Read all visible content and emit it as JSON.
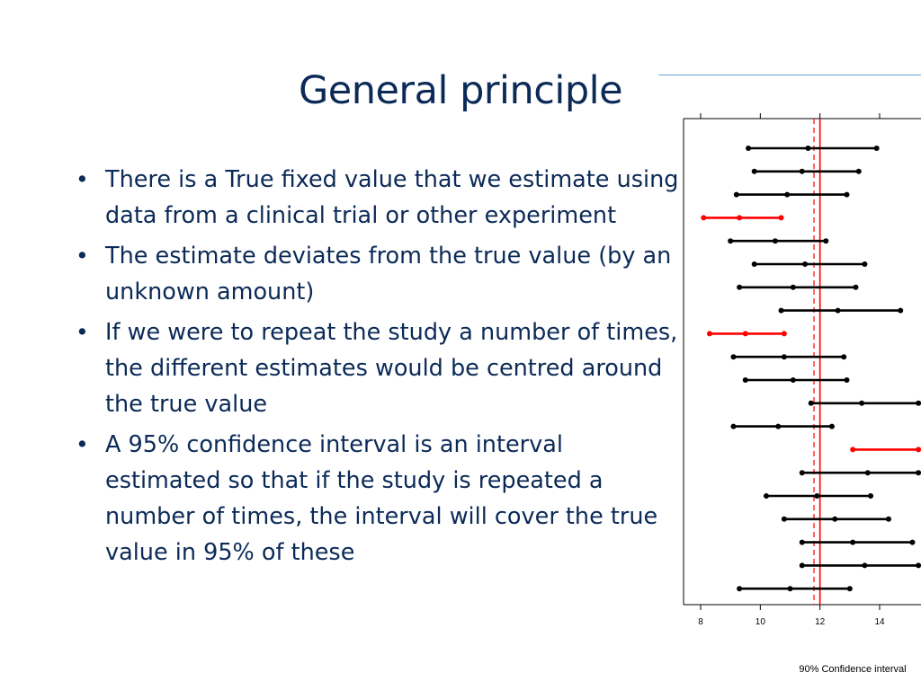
{
  "slide": {
    "title": "General principle",
    "bullets": [
      "There is a True fixed value that we estimate using data from a clinical trial or other experiment",
      "The estimate deviates from the true value (by an unknown amount)",
      "If we were to repeat the study a number of times, the different estimates would be centred around the true value",
      "A 95% confidence interval is an interval estimated so that if the study is repeated a number of times, the interval will cover the true value in 95% of these"
    ]
  },
  "colors": {
    "title": "#0b2a57",
    "text": "#0b2a57",
    "rule": "#6aa6d8",
    "interval_cover": "#000000",
    "interval_miss": "#ff0000",
    "true_line": "#ff0000"
  },
  "chart_data": {
    "type": "scatter",
    "xlabel": "90% Confidence interval",
    "ticks": [
      8,
      10,
      12,
      14
    ],
    "xlim": [
      7.4,
      15.3
    ],
    "true_value": 12,
    "mean_estimate": 11.8,
    "intervals": [
      {
        "lower": 9.6,
        "estimate": 11.6,
        "upper": 13.9,
        "covers": true
      },
      {
        "lower": 9.8,
        "estimate": 11.4,
        "upper": 13.3,
        "covers": true
      },
      {
        "lower": 9.2,
        "estimate": 10.9,
        "upper": 12.9,
        "covers": true
      },
      {
        "lower": 8.1,
        "estimate": 9.3,
        "upper": 10.7,
        "covers": false
      },
      {
        "lower": 9.0,
        "estimate": 10.5,
        "upper": 12.2,
        "covers": true
      },
      {
        "lower": 9.8,
        "estimate": 11.5,
        "upper": 13.5,
        "covers": true
      },
      {
        "lower": 9.3,
        "estimate": 11.1,
        "upper": 13.2,
        "covers": true
      },
      {
        "lower": 10.7,
        "estimate": 12.6,
        "upper": 14.7,
        "covers": true
      },
      {
        "lower": 8.3,
        "estimate": 9.5,
        "upper": 10.8,
        "covers": false
      },
      {
        "lower": 9.1,
        "estimate": 10.8,
        "upper": 12.8,
        "covers": true
      },
      {
        "lower": 9.5,
        "estimate": 11.1,
        "upper": 12.9,
        "covers": true
      },
      {
        "lower": 11.7,
        "estimate": 13.4,
        "upper": 15.3,
        "covers": true
      },
      {
        "lower": 9.1,
        "estimate": 10.6,
        "upper": 12.4,
        "covers": true
      },
      {
        "lower": 13.1,
        "estimate": null,
        "upper": 15.3,
        "covers": false
      },
      {
        "lower": 11.4,
        "estimate": 13.6,
        "upper": 15.3,
        "covers": true
      },
      {
        "lower": 10.2,
        "estimate": 11.9,
        "upper": 13.7,
        "covers": true
      },
      {
        "lower": 10.8,
        "estimate": 12.5,
        "upper": 14.3,
        "covers": true
      },
      {
        "lower": 11.4,
        "estimate": 13.1,
        "upper": 15.1,
        "covers": true
      },
      {
        "lower": 11.4,
        "estimate": 13.5,
        "upper": 15.3,
        "covers": true
      },
      {
        "lower": 9.3,
        "estimate": 11.0,
        "upper": 13.0,
        "covers": true
      }
    ]
  }
}
